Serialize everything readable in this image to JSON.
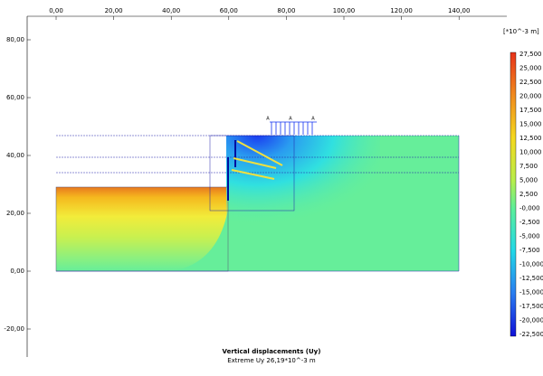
{
  "axis": {
    "top_ticks": [
      "0,00",
      "20,00",
      "40,00",
      "60,00",
      "80,00",
      "100,00",
      "120,00",
      "140,00"
    ],
    "left_ticks": [
      "80,00",
      "60,00",
      "40,00",
      "20,00",
      "0,00",
      "-20,00"
    ]
  },
  "legend": {
    "unit": "[*10^-3 m]",
    "labels": [
      "27,500",
      "25,000",
      "22,500",
      "20,000",
      "17,500",
      "15,000",
      "12,500",
      "10,000",
      "7,500",
      "5,000",
      "2,500",
      "-0,000",
      "-2,500",
      "-5,000",
      "-7,500",
      "-10,000",
      "-12,500",
      "-15,000",
      "-17,500",
      "-20,000",
      "-22,500"
    ]
  },
  "load_labels": [
    "A",
    "A",
    "A"
  ],
  "caption": {
    "title": "Vertical displacements (Uy)",
    "subtitle": "Extreme Uy 26,19*10^-3 m"
  }
}
